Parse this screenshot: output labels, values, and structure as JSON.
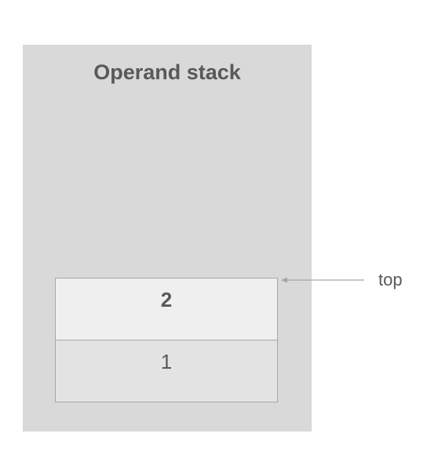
{
  "title": "Operand stack",
  "stack": {
    "top_value": "2",
    "bottom_value": "1"
  },
  "pointer": {
    "label": "top"
  },
  "colors": {
    "panel": "#d9d9d9",
    "text": "#595959",
    "cell_border": "#a6a6a6",
    "arrow": "#a6a6a6"
  }
}
